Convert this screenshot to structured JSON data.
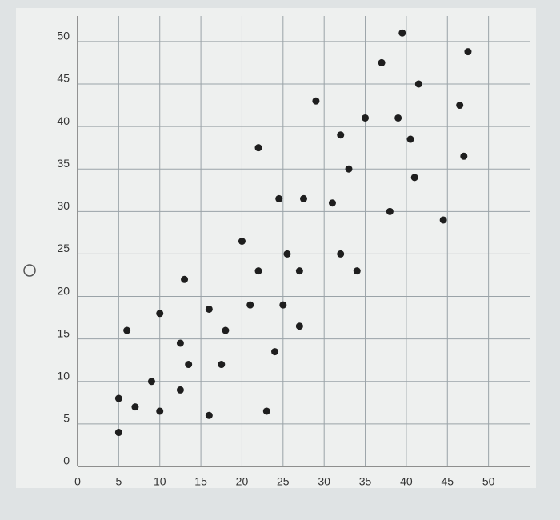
{
  "chart_data": {
    "type": "scatter",
    "x": [
      5,
      5,
      6,
      7,
      9,
      10,
      10,
      12.5,
      12.5,
      13,
      13.5,
      16,
      16,
      17.5,
      18,
      20,
      21,
      22,
      22,
      23,
      24,
      24.5,
      25,
      25.5,
      27,
      27,
      27.5,
      29,
      31,
      32,
      32,
      33,
      34,
      35,
      37,
      38,
      39,
      39.5,
      40.5,
      41,
      41.5,
      44.5,
      46.5,
      47,
      47.5
    ],
    "values": [
      8,
      4,
      16,
      7,
      10,
      6.5,
      18,
      9,
      14.5,
      22,
      12,
      6,
      18.5,
      12,
      16,
      26.5,
      19,
      37.5,
      23,
      6.5,
      13.5,
      31.5,
      19,
      25,
      23,
      16.5,
      31.5,
      43,
      31,
      39,
      25,
      35,
      23,
      41,
      47.5,
      30,
      41,
      51,
      38.5,
      34,
      45,
      29,
      42.5,
      36.5,
      48.8
    ],
    "color": "#1e1e1e",
    "xlim": [
      0,
      55
    ],
    "xticks": [
      0,
      5,
      10,
      15,
      20,
      25,
      30,
      35,
      40,
      45,
      50
    ],
    "ylim": [
      0,
      53
    ],
    "yticks": [
      0,
      5,
      10,
      15,
      20,
      25,
      30,
      35,
      40,
      45,
      50
    ],
    "grid": true
  }
}
